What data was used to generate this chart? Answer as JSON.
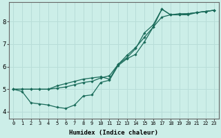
{
  "xlabel": "Humidex (Indice chaleur)",
  "bg_color": "#cceee8",
  "grid_color": "#b8ddd8",
  "line_color": "#1a6b5a",
  "xlim": [
    -0.5,
    23.5
  ],
  "ylim": [
    3.7,
    8.85
  ],
  "xticks": [
    0,
    1,
    2,
    3,
    4,
    5,
    6,
    7,
    8,
    9,
    10,
    11,
    12,
    13,
    14,
    15,
    16,
    17,
    18,
    19,
    20,
    21,
    22,
    23
  ],
  "yticks": [
    4,
    5,
    6,
    7,
    8
  ],
  "line1_x": [
    0,
    1,
    2,
    3,
    4,
    5,
    6,
    7,
    8,
    9,
    10,
    11,
    12,
    13,
    14,
    15,
    16,
    17,
    18,
    19,
    20,
    21,
    22,
    23
  ],
  "line1_y": [
    5.0,
    4.9,
    4.4,
    4.35,
    4.3,
    4.2,
    4.15,
    4.3,
    4.7,
    4.75,
    5.3,
    5.4,
    6.05,
    6.35,
    6.55,
    7.1,
    7.75,
    8.55,
    8.3,
    8.3,
    8.3,
    8.4,
    8.45,
    8.5
  ],
  "line2_x": [
    0,
    1,
    2,
    3,
    4,
    5,
    6,
    7,
    8,
    9,
    10,
    11,
    12,
    13,
    14,
    15,
    16,
    17,
    18,
    19,
    20,
    21,
    22,
    23
  ],
  "line2_y": [
    5.0,
    5.0,
    5.0,
    5.0,
    5.0,
    5.15,
    5.25,
    5.35,
    5.45,
    5.5,
    5.55,
    5.45,
    6.1,
    6.5,
    6.85,
    7.3,
    7.75,
    8.2,
    8.3,
    8.35,
    8.35,
    8.4,
    8.45,
    8.5
  ],
  "line3_x": [
    0,
    1,
    2,
    3,
    4,
    5,
    6,
    7,
    8,
    9,
    10,
    11,
    12,
    13,
    14,
    15,
    16,
    17,
    18,
    19,
    20,
    21,
    22,
    23
  ],
  "line3_y": [
    5.0,
    5.0,
    5.0,
    5.0,
    5.0,
    5.05,
    5.1,
    5.2,
    5.3,
    5.35,
    5.5,
    5.6,
    6.1,
    6.4,
    6.8,
    7.5,
    7.85,
    8.55,
    8.3,
    8.3,
    8.35,
    8.4,
    8.45,
    8.5
  ]
}
